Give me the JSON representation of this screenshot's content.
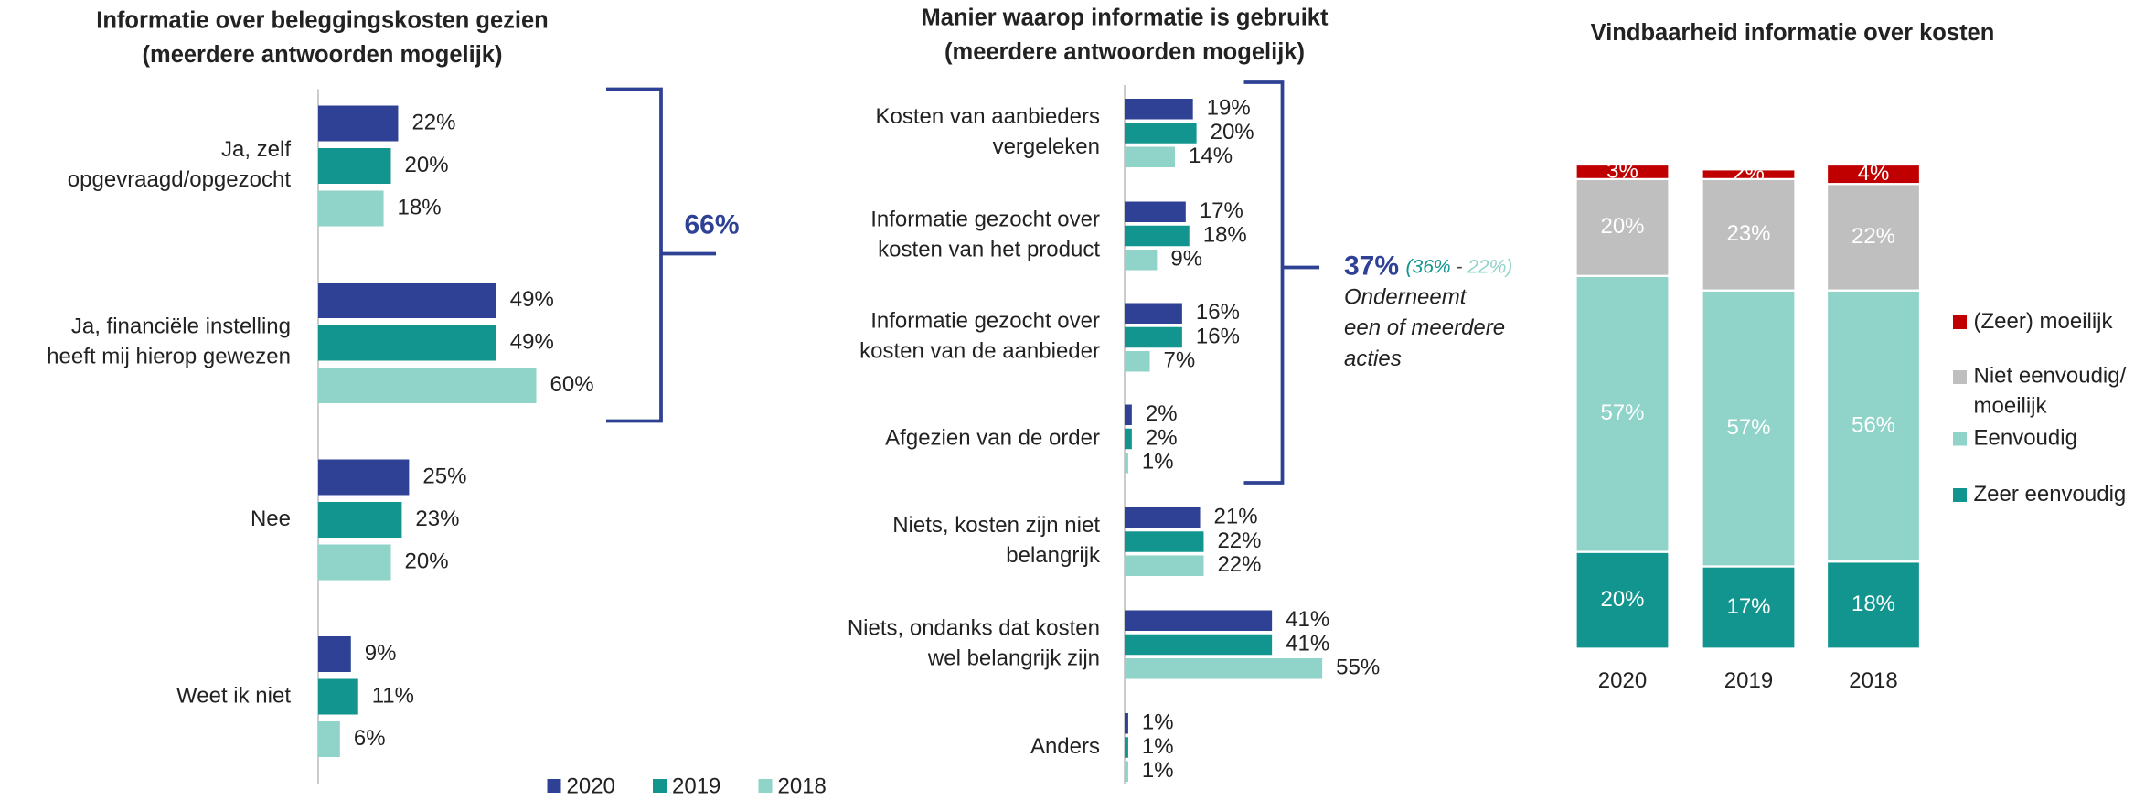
{
  "chart_data": [
    {
      "type": "hbar",
      "title": "Informatie over beleggingskosten gezien\n(meerdere antwoorden mogelijk)",
      "categories": [
        "Ja, zelf\nopgevraagd/opgezocht",
        "Ja, financiële instelling\nheeft mij hierop gewezen",
        "Nee",
        "Weet ik niet"
      ],
      "series": [
        {
          "name": "2020",
          "color": "#2e4194",
          "values": [
            22,
            49,
            25,
            9
          ],
          "value_labels": [
            "22%",
            "49%",
            "25%",
            "9%"
          ]
        },
        {
          "name": "2019",
          "color": "#13958f",
          "values": [
            20,
            49,
            23,
            11
          ],
          "value_labels": [
            "20%",
            "49%",
            "23%",
            "11%"
          ]
        },
        {
          "name": "2018",
          "color": "#8fd3c9",
          "values": [
            18,
            60,
            20,
            6
          ],
          "value_labels": [
            "18%",
            "60%",
            "20%",
            "6%"
          ]
        }
      ],
      "annotation": "66%",
      "legend": "bottom"
    },
    {
      "type": "hbar",
      "title": "Manier waarop informatie is gebruikt\n(meerdere antwoorden mogelijk)",
      "categories": [
        "Kosten van aanbieders\nvergeleken",
        "Informatie gezocht over\nkosten van het product",
        "Informatie gezocht over\nkosten van de aanbieder",
        "Afgezien van de order",
        "Niets, kosten zijn niet\nbelangrijk",
        "Niets, ondanks dat kosten\nwel belangrijk zijn",
        "Anders"
      ],
      "series": [
        {
          "name": "2020",
          "color": "#2e4194",
          "values": [
            19,
            17,
            16,
            2,
            21,
            41,
            1
          ],
          "value_labels": [
            "19%",
            "17%",
            "16%",
            "2%",
            "21%",
            "41%",
            "1%"
          ]
        },
        {
          "name": "2019",
          "color": "#13958f",
          "values": [
            20,
            18,
            16,
            2,
            22,
            41,
            1
          ],
          "value_labels": [
            "20%",
            "18%",
            "16%",
            "2%",
            "22%",
            "41%",
            "1%"
          ]
        },
        {
          "name": "2018",
          "color": "#8fd3c9",
          "values": [
            14,
            9,
            7,
            1,
            22,
            55,
            1
          ],
          "value_labels": [
            "14%",
            "9%",
            "7%",
            "1%",
            "22%",
            "55%",
            "1%"
          ]
        }
      ],
      "annotation": {
        "total": "37%",
        "detail": [
          "(36%",
          " - ",
          "22%)"
        ],
        "text": "Onderneemt\neen of meerdere\nacties"
      }
    },
    {
      "type": "stacked",
      "title": "Vindbaarheid informatie over kosten",
      "categories": [
        "2020",
        "2019",
        "2018"
      ],
      "series": [
        {
          "name": "Zeer eenvoudig",
          "color": "#13958f",
          "values": [
            20,
            17,
            18
          ],
          "value_labels": [
            "20%",
            "17%",
            "18%"
          ]
        },
        {
          "name": "Eenvoudig",
          "color": "#8fd3c9",
          "values": [
            57,
            57,
            56
          ],
          "value_labels": [
            "57%",
            "57%",
            "56%"
          ]
        },
        {
          "name": "Niet eenvoudig/\nmoeilijk",
          "color": "#bfbfbf",
          "values": [
            20,
            23,
            22
          ],
          "value_labels": [
            "20%",
            "23%",
            "22%"
          ]
        },
        {
          "name": "(Zeer) moeilijk",
          "color": "#c00000",
          "values": [
            3,
            2,
            4
          ],
          "value_labels": [
            "3%",
            "2%",
            "4%"
          ]
        }
      ],
      "legend": "right"
    }
  ]
}
